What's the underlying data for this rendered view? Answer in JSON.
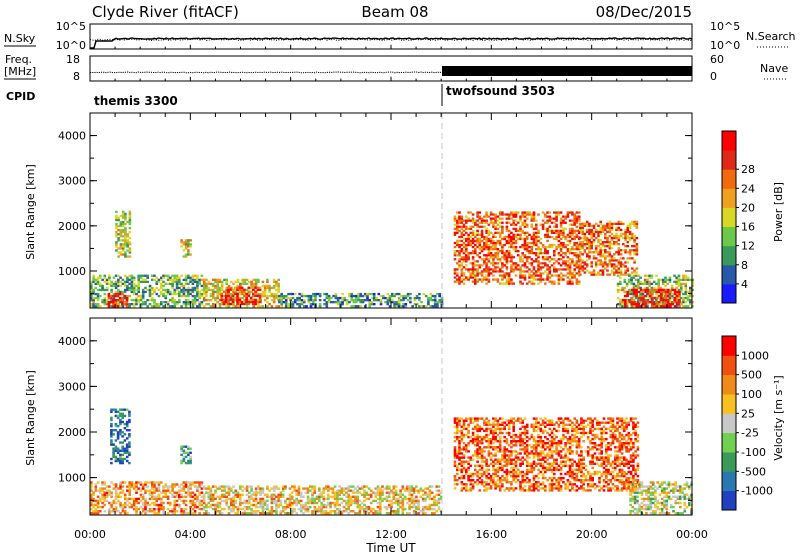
{
  "header": {
    "station": "Clyde River (fitACF)",
    "beam": "Beam 08",
    "date": "08/Dec/2015"
  },
  "strip_nsky": {
    "left_label": "N.Sky",
    "right_label": "N.Search",
    "left_ticks": [
      "10^5",
      "10^0"
    ],
    "right_ticks": [
      "10^5",
      "10^0"
    ]
  },
  "strip_freq": {
    "left_label_1": "Freq.",
    "left_label_2": "[MHz]",
    "right_label": "Nave",
    "left_ticks": [
      "18",
      "8"
    ],
    "right_ticks": [
      "60",
      "0"
    ]
  },
  "cpid": {
    "label": "CPID",
    "modes": [
      {
        "name": "themis 3300",
        "start_hour": 0
      },
      {
        "name": "twofsound 3503",
        "start_hour": 14
      }
    ]
  },
  "time_axis": {
    "label": "Time UT",
    "ticks": [
      "00:00",
      "04:00",
      "08:00",
      "12:00",
      "16:00",
      "20:00",
      "00:00"
    ]
  },
  "chart_data": [
    {
      "type": "heatmap",
      "name": "power",
      "ylabel": "Slant Range [km]",
      "yticks": [
        "1000",
        "2000",
        "3000",
        "4000"
      ],
      "ylim": [
        180,
        4500
      ],
      "xlim": [
        0,
        24
      ],
      "colorbar_label": "Power [dB]",
      "colorbar_ticks": [
        "4",
        "8",
        "12",
        "16",
        "20",
        "24",
        "28"
      ],
      "colorbar_colors": [
        "#1a1aff",
        "#2858a8",
        "#3a9a5a",
        "#6cc84a",
        "#d8d824",
        "#f0a020",
        "#f06a10",
        "#e02818",
        "#ff0000"
      ],
      "regions": [
        {
          "t0": 0.0,
          "t1": 4.5,
          "r0": 200,
          "r1": 900,
          "level": 0.35
        },
        {
          "t0": 0.7,
          "t1": 1.5,
          "r0": 200,
          "r1": 500,
          "level": 0.9
        },
        {
          "t0": 1.0,
          "t1": 1.6,
          "r0": 1300,
          "r1": 2300,
          "level": 0.45
        },
        {
          "t0": 3.6,
          "t1": 4.0,
          "r0": 1300,
          "r1": 1700,
          "level": 0.5
        },
        {
          "t0": 4.5,
          "t1": 7.5,
          "r0": 200,
          "r1": 800,
          "level": 0.55
        },
        {
          "t0": 5.2,
          "t1": 6.8,
          "r0": 250,
          "r1": 650,
          "level": 0.85
        },
        {
          "t0": 7.5,
          "t1": 14.0,
          "r0": 200,
          "r1": 500,
          "level": 0.3
        },
        {
          "t0": 14.5,
          "t1": 19.5,
          "r0": 700,
          "r1": 2300,
          "level": 0.75
        },
        {
          "t0": 19.5,
          "t1": 21.8,
          "r0": 900,
          "r1": 2100,
          "level": 0.7
        },
        {
          "t0": 21.0,
          "t1": 24.0,
          "r0": 200,
          "r1": 900,
          "level": 0.4
        },
        {
          "t0": 21.2,
          "t1": 23.5,
          "r0": 200,
          "r1": 600,
          "level": 0.9
        }
      ]
    },
    {
      "type": "heatmap",
      "name": "velocity",
      "ylabel": "Slant Range [km]",
      "yticks": [
        "1000",
        "2000",
        "3000",
        "4000"
      ],
      "ylim": [
        180,
        4500
      ],
      "xlim": [
        0,
        24
      ],
      "colorbar_label": "Velocity [m s⁻¹]",
      "colorbar_ticks": [
        "1000",
        "500",
        "100",
        "25",
        "-25",
        "-100",
        "-500",
        "-1000"
      ],
      "colorbar_colors": [
        "#2040c0",
        "#2a78b0",
        "#3a9a5a",
        "#70d050",
        "#c8c8c8",
        "#f8c020",
        "#f08a18",
        "#f05010",
        "#ff0000"
      ],
      "regions": [
        {
          "t0": 0.0,
          "t1": 4.5,
          "r0": 200,
          "r1": 900,
          "level": 0.7
        },
        {
          "t0": 0.8,
          "t1": 1.6,
          "r0": 1300,
          "r1": 2500,
          "level": 0.15
        },
        {
          "t0": 3.6,
          "t1": 4.0,
          "r0": 1300,
          "r1": 1700,
          "level": 0.3
        },
        {
          "t0": 4.5,
          "t1": 14.0,
          "r0": 200,
          "r1": 800,
          "level": 0.6
        },
        {
          "t0": 14.5,
          "t1": 21.8,
          "r0": 700,
          "r1": 2300,
          "level": 0.8
        },
        {
          "t0": 21.5,
          "t1": 24.0,
          "r0": 200,
          "r1": 900,
          "level": 0.5
        }
      ]
    }
  ]
}
